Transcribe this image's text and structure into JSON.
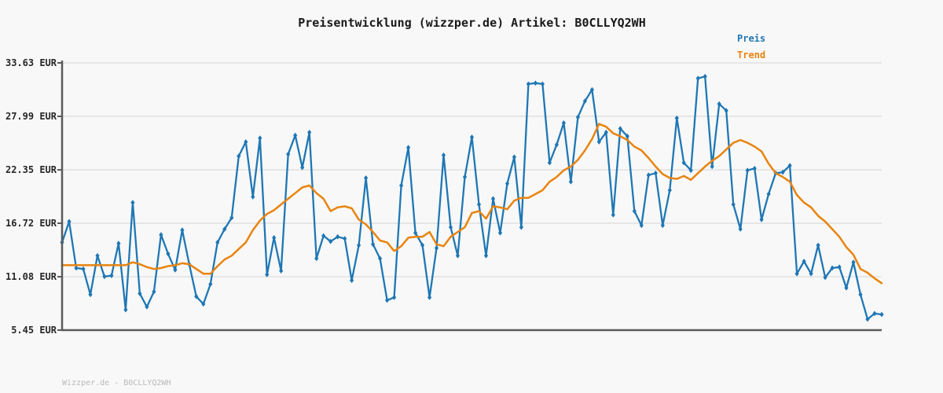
{
  "title": "Preisentwicklung (wizzper.de) Artikel: B0CLLYQ2WH",
  "legend": {
    "price_label": "Preis",
    "trend_label": "Trend"
  },
  "footer": "Wizzper.de - B0CLLYQ2WH",
  "colors": {
    "price": "#1f77b4",
    "trend": "#e8840e",
    "grid": "#e4e4e4",
    "spine": "#5a5a5a",
    "background": "#f8f8f8",
    "tick_text": "#262626",
    "footer_text": "#b9b9b9"
  },
  "chart_data": {
    "type": "line",
    "title": "Preisentwicklung (wizzper.de) Artikel: B0CLLYQ2WH",
    "xlabel": "",
    "ylabel": "EUR",
    "ylim": [
      5.45,
      33.63
    ],
    "grid": "horizontal",
    "legend_position": "top-right",
    "x_axis_labels_visible": false,
    "num_points": 117,
    "y_ticks": [
      {
        "value": 33.63,
        "label": "33.63 EUR"
      },
      {
        "value": 27.99,
        "label": "27.99 EUR"
      },
      {
        "value": 22.35,
        "label": "22.35 EUR"
      },
      {
        "value": 16.72,
        "label": "16.72 EUR"
      },
      {
        "value": 11.08,
        "label": "11.08 EUR"
      },
      {
        "value": 5.45,
        "label": "5.45 EUR"
      }
    ],
    "series": [
      {
        "name": "Preis",
        "color": "#1f77b4",
        "markers": true,
        "values": [
          14.7,
          16.9,
          12.0,
          11.9,
          9.2,
          13.3,
          11.1,
          11.2,
          14.6,
          7.6,
          18.9,
          9.3,
          7.9,
          9.5,
          15.5,
          13.5,
          11.8,
          16.0,
          12.4,
          9.0,
          8.2,
          10.3,
          14.7,
          16.1,
          17.3,
          23.8,
          25.3,
          19.5,
          25.7,
          11.3,
          15.2,
          11.7,
          24.0,
          26.0,
          22.6,
          26.3,
          13.0,
          15.4,
          14.8,
          15.3,
          15.1,
          10.7,
          14.4,
          21.5,
          14.5,
          13.0,
          8.6,
          8.9,
          20.7,
          24.7,
          15.7,
          14.4,
          8.9,
          14.1,
          23.9,
          16.3,
          13.3,
          21.6,
          25.8,
          18.7,
          13.3,
          19.3,
          15.7,
          20.9,
          23.7,
          16.3,
          31.4,
          31.5,
          31.4,
          23.1,
          25.0,
          27.3,
          21.1,
          27.9,
          29.6,
          30.8,
          25.3,
          26.3,
          17.6,
          26.7,
          25.9,
          18.0,
          16.5,
          21.8,
          22.0,
          16.5,
          20.2,
          27.8,
          23.1,
          22.3,
          32.0,
          32.2,
          22.7,
          29.3,
          28.6,
          18.7,
          16.1,
          22.3,
          22.5,
          17.1,
          19.8,
          22.0,
          22.1,
          22.8,
          11.4,
          12.7,
          11.4,
          14.4,
          11.0,
          12.0,
          12.1,
          9.9,
          12.6,
          9.2,
          6.6,
          7.2,
          7.1
        ]
      },
      {
        "name": "Trend",
        "color": "#e8840e",
        "markers": false,
        "values": [
          12.3,
          12.3,
          12.3,
          12.3,
          12.3,
          12.3,
          12.3,
          12.3,
          12.3,
          12.3,
          12.6,
          12.4,
          12.1,
          11.9,
          12.0,
          12.2,
          12.3,
          12.5,
          12.4,
          11.9,
          11.4,
          11.4,
          12.2,
          12.9,
          13.3,
          14.0,
          14.7,
          16.0,
          17.0,
          17.7,
          18.1,
          18.7,
          19.3,
          19.9,
          20.5,
          20.7,
          19.9,
          19.3,
          18.0,
          18.4,
          18.5,
          18.3,
          17.1,
          16.6,
          15.8,
          14.9,
          14.7,
          13.8,
          14.3,
          15.2,
          15.3,
          15.3,
          15.8,
          14.5,
          14.3,
          15.3,
          15.8,
          16.3,
          17.8,
          18.0,
          17.2,
          18.5,
          18.4,
          18.2,
          19.1,
          19.4,
          19.4,
          19.8,
          20.2,
          21.1,
          21.6,
          22.3,
          22.7,
          23.4,
          24.4,
          25.6,
          27.2,
          26.9,
          26.2,
          25.9,
          25.5,
          24.8,
          24.4,
          23.6,
          22.7,
          21.9,
          21.5,
          21.4,
          21.7,
          21.3,
          22.0,
          22.7,
          23.3,
          23.8,
          24.5,
          25.2,
          25.5,
          25.2,
          24.8,
          24.3,
          23.0,
          22.0,
          21.6,
          21.1,
          19.7,
          18.9,
          18.4,
          17.5,
          16.9,
          16.1,
          15.3,
          14.2,
          13.4,
          11.9,
          11.5,
          10.9,
          10.4
        ]
      }
    ]
  }
}
